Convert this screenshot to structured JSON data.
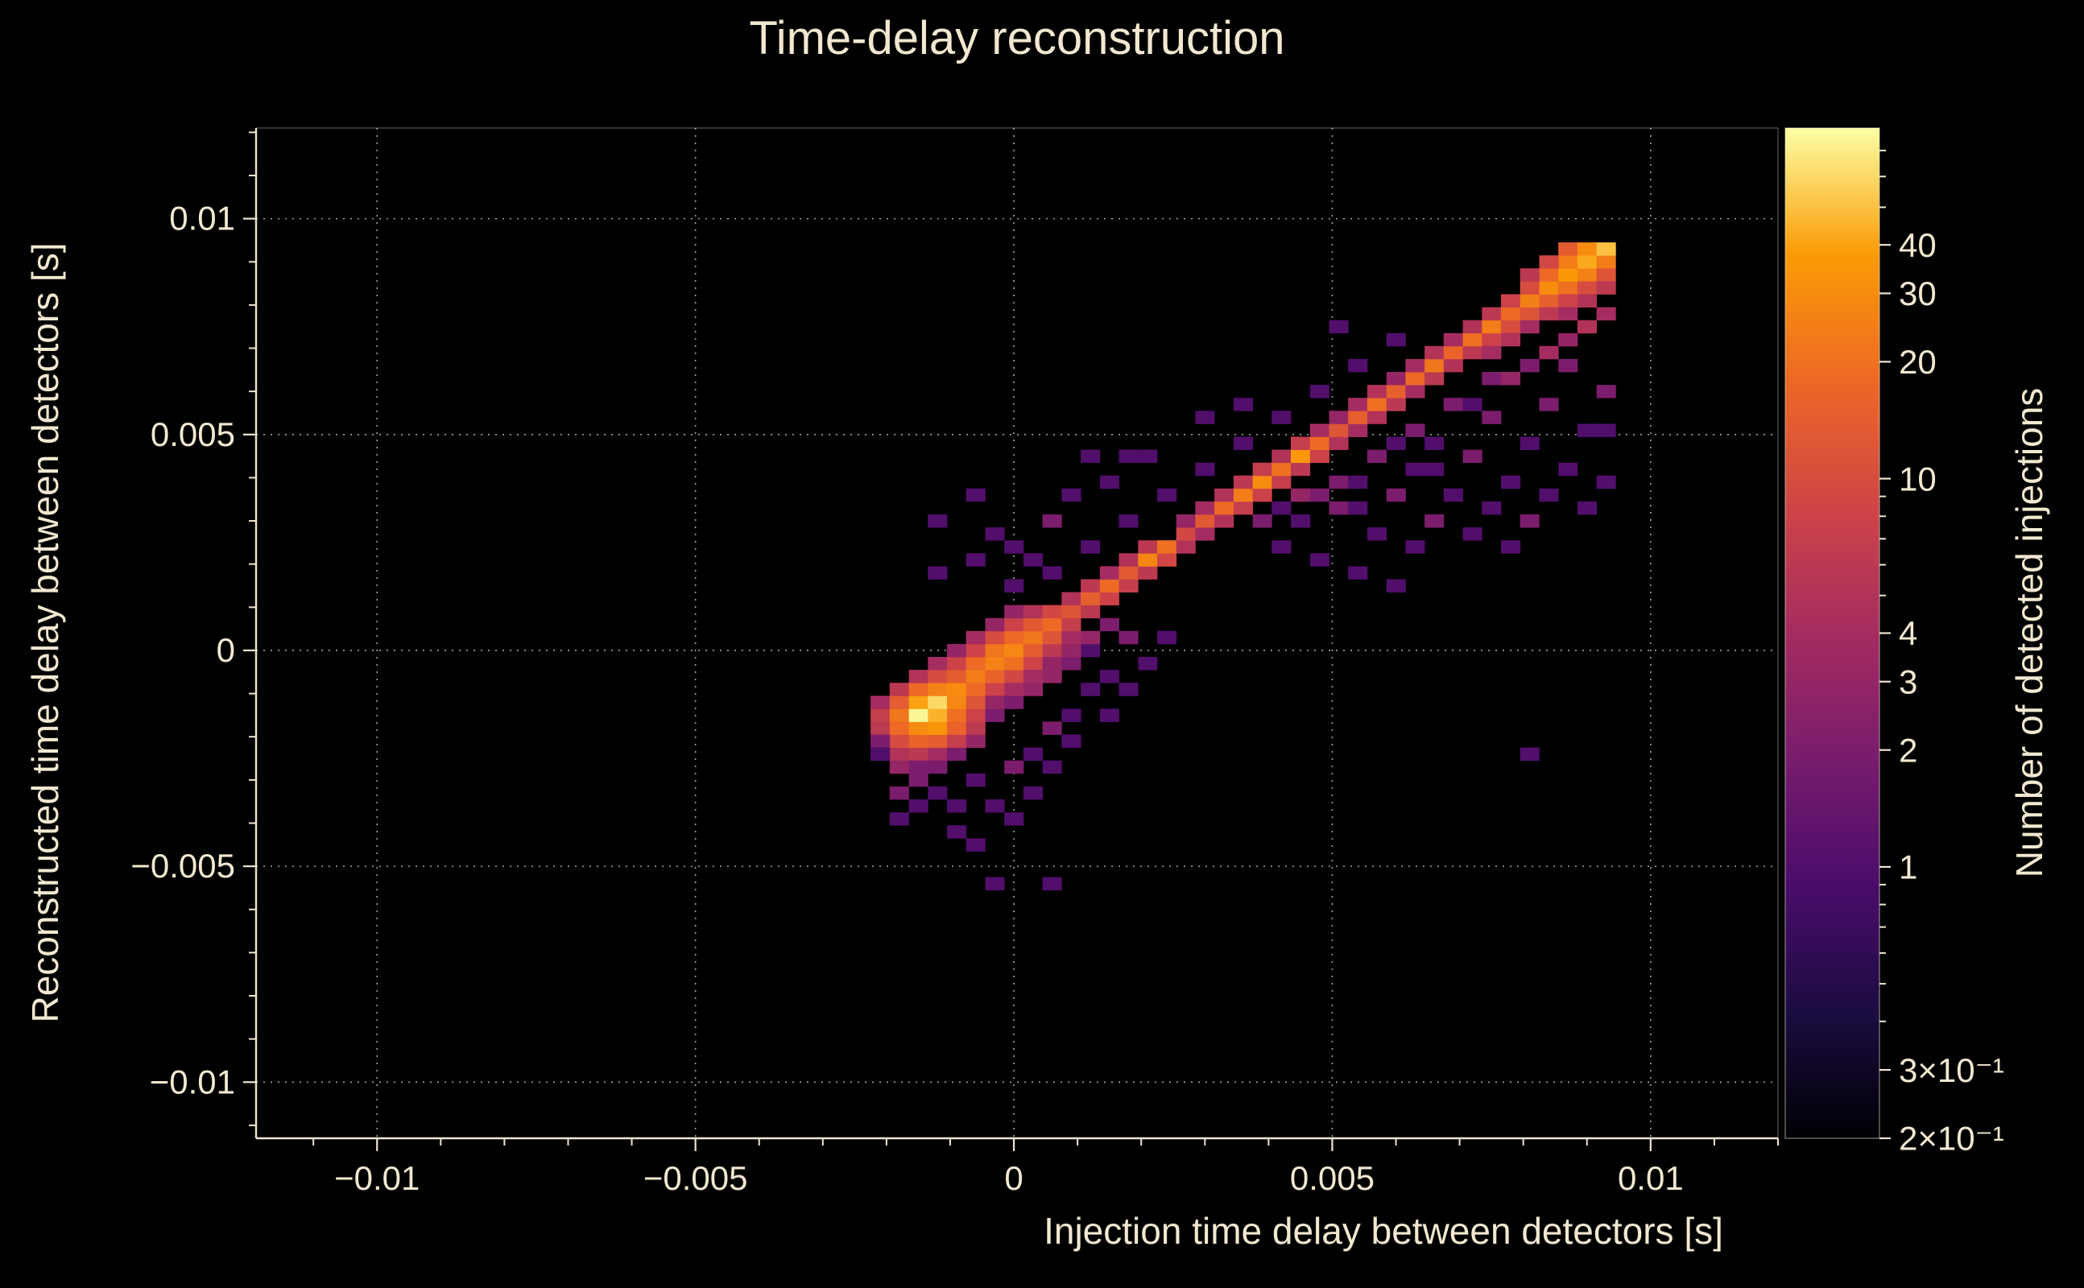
{
  "chart_data": {
    "type": "heatmap",
    "title": "Time-delay reconstruction",
    "xlabel": "Injection time delay between detectors [s]",
    "ylabel": "Reconstructed time delay between detectors [s]",
    "colorbar_label": "Number of detected injections",
    "xlim": [
      -0.0119,
      0.012
    ],
    "ylim": [
      -0.0113,
      0.0121
    ],
    "grid": true,
    "x_ticks": [
      {
        "v": -0.01,
        "label": "−0.01"
      },
      {
        "v": -0.005,
        "label": "−0.005"
      },
      {
        "v": 0,
        "label": "0"
      },
      {
        "v": 0.005,
        "label": "0.005"
      },
      {
        "v": 0.01,
        "label": "0.01"
      }
    ],
    "y_ticks": [
      {
        "v": 0.01,
        "label": "0.01"
      },
      {
        "v": 0.005,
        "label": "0.005"
      },
      {
        "v": 0,
        "label": "0"
      },
      {
        "v": -0.005,
        "label": "−0.005"
      },
      {
        "v": -0.01,
        "label": "−0.01"
      }
    ],
    "minor_tick_step": 0.001,
    "style": {
      "background": "#000000",
      "text": "#f2e8d0",
      "spine": "#efe6d0",
      "grid": "#f0ebdc"
    },
    "color_scale": {
      "type": "log",
      "vmin": 0.2,
      "vmax": 80,
      "colormap": "inferno",
      "anchors": [
        "#000004",
        "#1b0c41",
        "#4a0c6b",
        "#781c6d",
        "#a52c60",
        "#cf4446",
        "#ed6925",
        "#fb9b06",
        "#fcffa4"
      ]
    },
    "colorbar_ticks": [
      {
        "v": 40,
        "label": "40"
      },
      {
        "v": 30,
        "label": "30"
      },
      {
        "v": 20,
        "label": "20"
      },
      {
        "v": 10,
        "label": "10"
      },
      {
        "v": 4,
        "label": "4"
      },
      {
        "v": 3,
        "label": "3"
      },
      {
        "v": 2,
        "label": "2"
      },
      {
        "v": 1,
        "label": "1"
      },
      {
        "v": 0.3,
        "label": "3×10⁻¹"
      },
      {
        "v": 0.2,
        "label": "2×10⁻¹"
      }
    ],
    "colorbar_minor_ticks": [
      70,
      60,
      50,
      9,
      8,
      7,
      6,
      5,
      0.9,
      0.8,
      0.7,
      0.6,
      0.5,
      0.4
    ],
    "bin_width": 0.0003,
    "bins_note": "x = i*bin_width [s], y = j*bin_width [s], c = detected injections",
    "bins": [
      [
        -6,
        -8,
        5
      ],
      [
        -5,
        -8,
        6
      ],
      [
        -4,
        -8,
        4
      ],
      [
        -3,
        -8,
        2
      ],
      [
        -6,
        -7,
        10
      ],
      [
        -5,
        -7,
        16
      ],
      [
        -4,
        -7,
        14
      ],
      [
        -3,
        -7,
        7
      ],
      [
        -7,
        -6,
        6
      ],
      [
        -6,
        -6,
        18
      ],
      [
        -5,
        -6,
        30
      ],
      [
        -4,
        -6,
        34
      ],
      [
        -3,
        -6,
        16
      ],
      [
        -2,
        -6,
        6
      ],
      [
        -7,
        -5,
        7
      ],
      [
        -6,
        -5,
        22
      ],
      [
        -5,
        -5,
        75
      ],
      [
        -4,
        -5,
        45
      ],
      [
        -3,
        -5,
        20
      ],
      [
        -2,
        -5,
        8
      ],
      [
        -7,
        -4,
        4
      ],
      [
        -6,
        -4,
        14
      ],
      [
        -5,
        -4,
        40
      ],
      [
        -4,
        -4,
        60
      ],
      [
        -3,
        -4,
        28
      ],
      [
        -2,
        -4,
        12
      ],
      [
        -6,
        -3,
        6
      ],
      [
        -5,
        -3,
        18
      ],
      [
        -4,
        -3,
        26
      ],
      [
        -3,
        -3,
        30
      ],
      [
        -2,
        -3,
        18
      ],
      [
        -1,
        -3,
        8
      ],
      [
        -5,
        -2,
        5
      ],
      [
        -4,
        -2,
        10
      ],
      [
        -3,
        -2,
        14
      ],
      [
        -2,
        -2,
        24
      ],
      [
        -1,
        -2,
        16
      ],
      [
        0,
        -2,
        9
      ],
      [
        -4,
        -1,
        4
      ],
      [
        -3,
        -1,
        8
      ],
      [
        -2,
        -1,
        18
      ],
      [
        -1,
        -1,
        26
      ],
      [
        0,
        -1,
        20
      ],
      [
        1,
        -1,
        8
      ],
      [
        -3,
        0,
        3
      ],
      [
        -2,
        0,
        8
      ],
      [
        -1,
        0,
        22
      ],
      [
        0,
        0,
        28
      ],
      [
        1,
        0,
        14
      ],
      [
        2,
        0,
        6
      ],
      [
        -2,
        1,
        4
      ],
      [
        -1,
        1,
        10
      ],
      [
        0,
        1,
        18
      ],
      [
        1,
        1,
        22
      ],
      [
        2,
        1,
        12
      ],
      [
        3,
        1,
        4
      ],
      [
        -1,
        2,
        3
      ],
      [
        0,
        2,
        8
      ],
      [
        1,
        2,
        13
      ],
      [
        2,
        2,
        18
      ],
      [
        3,
        2,
        7
      ],
      [
        0,
        3,
        3
      ],
      [
        1,
        3,
        5
      ],
      [
        2,
        3,
        9
      ],
      [
        3,
        3,
        12
      ],
      [
        4,
        3,
        6
      ],
      [
        3,
        4,
        5
      ],
      [
        4,
        4,
        15
      ],
      [
        5,
        4,
        8
      ],
      [
        4,
        5,
        6
      ],
      [
        5,
        5,
        18
      ],
      [
        6,
        5,
        7
      ],
      [
        5,
        6,
        4
      ],
      [
        6,
        6,
        13
      ],
      [
        7,
        6,
        6
      ],
      [
        6,
        7,
        5
      ],
      [
        7,
        7,
        28
      ],
      [
        8,
        7,
        9
      ],
      [
        7,
        8,
        6
      ],
      [
        8,
        8,
        20
      ],
      [
        9,
        8,
        5
      ],
      [
        9,
        9,
        9
      ],
      [
        10,
        9,
        4
      ],
      [
        9,
        10,
        3
      ],
      [
        10,
        10,
        13
      ],
      [
        11,
        10,
        5
      ],
      [
        10,
        11,
        4
      ],
      [
        11,
        11,
        18
      ],
      [
        12,
        11,
        7
      ],
      [
        11,
        12,
        5
      ],
      [
        12,
        12,
        24
      ],
      [
        13,
        12,
        8
      ],
      [
        12,
        13,
        6
      ],
      [
        13,
        13,
        30
      ],
      [
        14,
        13,
        7
      ],
      [
        13,
        14,
        7
      ],
      [
        14,
        14,
        20
      ],
      [
        15,
        14,
        6
      ],
      [
        14,
        15,
        5
      ],
      [
        15,
        15,
        36
      ],
      [
        16,
        15,
        8
      ],
      [
        15,
        16,
        7
      ],
      [
        16,
        16,
        18
      ],
      [
        17,
        16,
        5
      ],
      [
        16,
        17,
        4
      ],
      [
        17,
        17,
        12
      ],
      [
        18,
        17,
        4
      ],
      [
        17,
        18,
        3
      ],
      [
        18,
        18,
        15
      ],
      [
        19,
        18,
        5
      ],
      [
        18,
        19,
        4
      ],
      [
        19,
        19,
        20
      ],
      [
        20,
        19,
        6
      ],
      [
        19,
        20,
        5
      ],
      [
        20,
        20,
        15
      ],
      [
        21,
        20,
        4
      ],
      [
        20,
        21,
        3
      ],
      [
        21,
        21,
        18
      ],
      [
        22,
        21,
        6
      ],
      [
        21,
        22,
        4
      ],
      [
        22,
        22,
        22
      ],
      [
        23,
        22,
        5
      ],
      [
        22,
        23,
        5
      ],
      [
        23,
        23,
        16
      ],
      [
        24,
        23,
        6
      ],
      [
        23,
        24,
        4
      ],
      [
        24,
        24,
        20
      ],
      [
        25,
        24,
        8
      ],
      [
        24,
        25,
        5
      ],
      [
        25,
        25,
        24
      ],
      [
        26,
        25,
        10
      ],
      [
        25,
        26,
        6
      ],
      [
        26,
        26,
        18
      ],
      [
        27,
        26,
        12
      ],
      [
        26,
        27,
        8
      ],
      [
        27,
        27,
        25
      ],
      [
        28,
        27,
        15
      ],
      [
        27,
        28,
        10
      ],
      [
        28,
        28,
        30
      ],
      [
        29,
        28,
        20
      ],
      [
        28,
        29,
        18
      ],
      [
        29,
        29,
        36
      ],
      [
        30,
        29,
        26
      ],
      [
        29,
        30,
        24
      ],
      [
        30,
        30,
        42
      ],
      [
        31,
        30,
        24
      ],
      [
        29,
        31,
        14
      ],
      [
        30,
        31,
        30
      ],
      [
        31,
        31,
        50
      ],
      [
        27,
        29,
        6
      ],
      [
        28,
        30,
        9
      ],
      [
        26,
        24,
        5
      ],
      [
        28,
        26,
        6
      ],
      [
        30,
        28,
        10
      ],
      [
        31,
        29,
        12
      ],
      [
        31,
        28,
        6
      ],
      [
        30,
        27,
        5
      ],
      [
        29,
        27,
        8
      ],
      [
        29,
        26,
        4
      ],
      [
        27,
        25,
        4
      ],
      [
        25,
        23,
        4
      ],
      [
        13,
        10,
        2
      ],
      [
        14,
        8,
        1
      ],
      [
        15,
        12,
        3
      ],
      [
        15,
        10,
        1
      ],
      [
        16,
        7,
        1
      ],
      [
        17,
        13,
        2
      ],
      [
        17,
        11,
        2
      ],
      [
        18,
        6,
        1
      ],
      [
        18,
        13,
        1
      ],
      [
        19,
        9,
        1
      ],
      [
        19,
        15,
        2
      ],
      [
        20,
        12,
        2
      ],
      [
        20,
        5,
        1
      ],
      [
        21,
        17,
        2
      ],
      [
        21,
        14,
        1
      ],
      [
        21,
        8,
        1
      ],
      [
        22,
        10,
        2
      ],
      [
        22,
        16,
        1
      ],
      [
        23,
        19,
        2
      ],
      [
        23,
        12,
        1
      ],
      [
        24,
        15,
        2
      ],
      [
        24,
        9,
        1
      ],
      [
        25,
        21,
        2
      ],
      [
        25,
        18,
        2
      ],
      [
        25,
        11,
        1
      ],
      [
        26,
        13,
        1
      ],
      [
        26,
        8,
        1
      ],
      [
        26,
        21,
        3
      ],
      [
        27,
        22,
        2
      ],
      [
        27,
        16,
        1
      ],
      [
        27,
        10,
        2
      ],
      [
        28,
        23,
        4
      ],
      [
        28,
        19,
        2
      ],
      [
        28,
        12,
        1
      ],
      [
        29,
        24,
        3
      ],
      [
        29,
        22,
        2
      ],
      [
        29,
        14,
        1
      ],
      [
        30,
        25,
        5
      ],
      [
        30,
        17,
        1
      ],
      [
        30,
        11,
        1
      ],
      [
        31,
        26,
        4
      ],
      [
        31,
        20,
        2
      ],
      [
        31,
        13,
        1
      ],
      [
        31,
        17,
        1
      ],
      [
        24,
        19,
        1
      ],
      [
        22,
        14,
        1
      ],
      [
        20,
        16,
        1
      ],
      [
        18,
        11,
        1
      ],
      [
        16,
        12,
        2
      ],
      [
        14,
        11,
        1
      ],
      [
        16,
        20,
        1
      ],
      [
        18,
        22,
        1
      ],
      [
        20,
        24,
        1
      ],
      [
        14,
        18,
        1
      ],
      [
        12,
        16,
        1
      ],
      [
        10,
        14,
        1
      ],
      [
        8,
        12,
        1
      ],
      [
        6,
        10,
        1
      ],
      [
        4,
        8,
        1
      ],
      [
        2,
        6,
        1
      ],
      [
        0,
        5,
        1
      ],
      [
        -2,
        7,
        1
      ],
      [
        -4,
        6,
        1
      ],
      [
        -1,
        9,
        1
      ],
      [
        -4,
        10,
        1
      ],
      [
        -2,
        12,
        1
      ],
      [
        3,
        12,
        1
      ],
      [
        4,
        15,
        1
      ],
      [
        6,
        15,
        1
      ],
      [
        5,
        13,
        1
      ],
      [
        7,
        15,
        1
      ],
      [
        1,
        7,
        1
      ],
      [
        2,
        10,
        2
      ],
      [
        0,
        8,
        1
      ],
      [
        17,
        25,
        1
      ],
      [
        10,
        18,
        1
      ],
      [
        12,
        19,
        1
      ],
      [
        -6,
        -9,
        3
      ],
      [
        -5,
        -9,
        2
      ],
      [
        -4,
        -9,
        2
      ],
      [
        -2,
        -7,
        3
      ],
      [
        -1,
        -5,
        2
      ],
      [
        -1,
        -4,
        3
      ],
      [
        0,
        -4,
        2
      ],
      [
        1,
        -3,
        3
      ],
      [
        2,
        -2,
        3
      ],
      [
        3,
        -1,
        2
      ],
      [
        4,
        0,
        1
      ],
      [
        0,
        -3,
        4
      ],
      [
        1,
        -2,
        4
      ],
      [
        2,
        -1,
        3
      ],
      [
        -5,
        -10,
        2
      ],
      [
        -4,
        -11,
        1
      ],
      [
        -6,
        -13,
        1
      ],
      [
        -3,
        -12,
        1
      ],
      [
        -5,
        -12,
        1
      ],
      [
        -7,
        -7,
        2
      ],
      [
        -7,
        -8,
        1
      ],
      [
        -3,
        -14,
        1
      ],
      [
        -2,
        -15,
        1
      ],
      [
        0,
        -13,
        1
      ],
      [
        1,
        -11,
        1
      ],
      [
        2,
        -9,
        1
      ],
      [
        3,
        -7,
        1
      ],
      [
        2,
        -6,
        2
      ],
      [
        3,
        -5,
        1
      ],
      [
        4,
        -3,
        1
      ],
      [
        5,
        -2,
        1
      ],
      [
        -1,
        -18,
        1
      ],
      [
        2,
        -18,
        1
      ],
      [
        -2,
        -10,
        1
      ],
      [
        -1,
        -12,
        1
      ],
      [
        0,
        -9,
        2
      ],
      [
        1,
        -8,
        1
      ],
      [
        -6,
        -11,
        2
      ],
      [
        27,
        -8,
        1
      ],
      [
        5,
        -5,
        1
      ],
      [
        6,
        -3,
        1
      ],
      [
        7,
        -1,
        1
      ],
      [
        8,
        1,
        1
      ],
      [
        6,
        1,
        2
      ],
      [
        5,
        2,
        2
      ],
      [
        4,
        1,
        3
      ],
      [
        3,
        0,
        3
      ]
    ]
  }
}
